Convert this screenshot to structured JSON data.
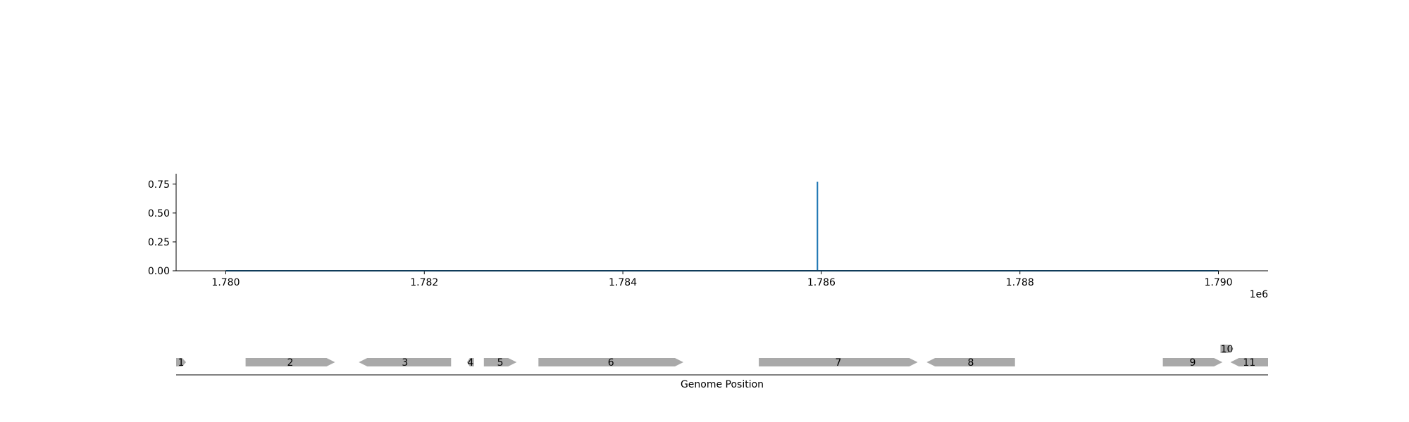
{
  "chart_data": [
    {
      "type": "line",
      "x_offset_label": "1e6",
      "xlim": [
        1779500,
        1790500
      ],
      "ylim": [
        0,
        0.84
      ],
      "x_ticks": [
        1780000,
        1782000,
        1784000,
        1786000,
        1788000,
        1790000
      ],
      "x_tick_labels": [
        "1.780",
        "1.782",
        "1.784",
        "1.786",
        "1.788",
        "1.790"
      ],
      "y_ticks": [
        0,
        0.25,
        0.5,
        0.75
      ],
      "y_tick_labels": [
        "0.00",
        "0.25",
        "0.50",
        "0.75"
      ],
      "line_color": "#1f77b4",
      "series": [
        {
          "x": [
            1780000,
            1785960,
            1785960,
            1785960,
            1785960,
            1790000
          ],
          "y": [
            0,
            0,
            0.77,
            0.77,
            0,
            0
          ]
        }
      ],
      "grid": false
    },
    {
      "type": "gene_map",
      "xlabel": "Genome Position",
      "xlim": [
        1779500,
        1790500
      ],
      "feature_color": "#a9a9a9",
      "genes": [
        {
          "label": "1",
          "start": 1779500,
          "end": 1779600,
          "strand": "+",
          "row": 0
        },
        {
          "label": "2",
          "start": 1780200,
          "end": 1781100,
          "strand": "+",
          "row": 0
        },
        {
          "label": "3",
          "start": 1781340,
          "end": 1782270,
          "strand": "-",
          "row": 0
        },
        {
          "label": "4",
          "start": 1782430,
          "end": 1782500,
          "strand": "-",
          "row": 0
        },
        {
          "label": "5",
          "start": 1782600,
          "end": 1782930,
          "strand": "+",
          "row": 0
        },
        {
          "label": "6",
          "start": 1783150,
          "end": 1784610,
          "strand": "+",
          "row": 0
        },
        {
          "label": "7",
          "start": 1785370,
          "end": 1786970,
          "strand": "+",
          "row": 0
        },
        {
          "label": "8",
          "start": 1787060,
          "end": 1787950,
          "strand": "-",
          "row": 0
        },
        {
          "label": "9",
          "start": 1789440,
          "end": 1790040,
          "strand": "+",
          "row": 0
        },
        {
          "label": "10",
          "start": 1790020,
          "end": 1790150,
          "strand": "+",
          "row": 1
        },
        {
          "label": "11",
          "start": 1790120,
          "end": 1790500,
          "strand": "-",
          "row": 0
        }
      ]
    }
  ]
}
